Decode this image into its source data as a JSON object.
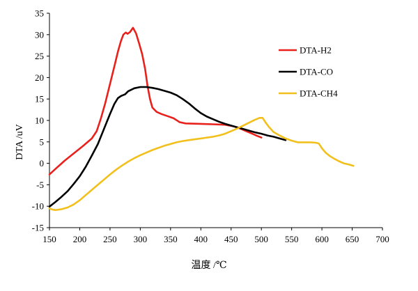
{
  "chart_data": {
    "type": "line",
    "title": "",
    "xlabel": "温度 /℃",
    "ylabel": "DTA /uV",
    "xlim": [
      150,
      700
    ],
    "ylim": [
      -15,
      35
    ],
    "x_ticks": [
      "150",
      "200",
      "250",
      "300",
      "350",
      "400",
      "450",
      "500",
      "550",
      "600",
      "650",
      "700"
    ],
    "y_ticks": [
      "-15",
      "-10",
      "-5",
      "0",
      "5",
      "10",
      "15",
      "20",
      "25",
      "30",
      "35"
    ],
    "grid": false,
    "legend_position": "right",
    "series": [
      {
        "name": "DTA-H2",
        "color": "#e8211c",
        "points": [
          [
            150,
            -2.6
          ],
          [
            160,
            -1.3
          ],
          [
            175,
            0.6
          ],
          [
            190,
            2.3
          ],
          [
            205,
            4
          ],
          [
            220,
            5.8
          ],
          [
            228,
            7.5
          ],
          [
            235,
            10.5
          ],
          [
            242,
            14
          ],
          [
            250,
            18.5
          ],
          [
            257,
            22.5
          ],
          [
            263,
            26
          ],
          [
            268,
            28.5
          ],
          [
            272,
            30
          ],
          [
            276,
            30.5
          ],
          [
            279,
            30.2
          ],
          [
            283,
            30.6
          ],
          [
            288,
            31.6
          ],
          [
            293,
            30.3
          ],
          [
            298,
            28
          ],
          [
            303,
            25.5
          ],
          [
            308,
            22
          ],
          [
            312,
            18
          ],
          [
            316,
            15
          ],
          [
            320,
            13
          ],
          [
            327,
            12
          ],
          [
            335,
            11.5
          ],
          [
            345,
            11
          ],
          [
            355,
            10.5
          ],
          [
            365,
            9.6
          ],
          [
            375,
            9.3
          ],
          [
            400,
            9.2
          ],
          [
            420,
            9.1
          ],
          [
            440,
            9
          ],
          [
            455,
            8.6
          ],
          [
            465,
            8.1
          ],
          [
            475,
            7.5
          ],
          [
            485,
            6.9
          ],
          [
            493,
            6.4
          ],
          [
            500,
            6
          ]
        ]
      },
      {
        "name": "DTA-CO",
        "color": "#000000",
        "points": [
          [
            150,
            -10.1
          ],
          [
            160,
            -9
          ],
          [
            170,
            -7.8
          ],
          [
            180,
            -6.5
          ],
          [
            190,
            -4.8
          ],
          [
            200,
            -3
          ],
          [
            210,
            -0.8
          ],
          [
            220,
            1.8
          ],
          [
            230,
            4.5
          ],
          [
            240,
            8
          ],
          [
            250,
            11.5
          ],
          [
            257,
            13.8
          ],
          [
            263,
            15.2
          ],
          [
            268,
            15.7
          ],
          [
            275,
            16.1
          ],
          [
            280,
            16.8
          ],
          [
            290,
            17.5
          ],
          [
            300,
            17.8
          ],
          [
            310,
            17.8
          ],
          [
            320,
            17.6
          ],
          [
            330,
            17.3
          ],
          [
            340,
            16.9
          ],
          [
            350,
            16.5
          ],
          [
            360,
            15.9
          ],
          [
            370,
            15
          ],
          [
            380,
            14
          ],
          [
            390,
            12.8
          ],
          [
            400,
            11.7
          ],
          [
            410,
            10.9
          ],
          [
            420,
            10.3
          ],
          [
            430,
            9.7
          ],
          [
            440,
            9.2
          ],
          [
            450,
            8.8
          ],
          [
            460,
            8.4
          ],
          [
            470,
            8
          ],
          [
            480,
            7.6
          ],
          [
            490,
            7.2
          ],
          [
            500,
            6.9
          ],
          [
            510,
            6.5
          ],
          [
            520,
            6.2
          ],
          [
            530,
            5.8
          ],
          [
            540,
            5.4
          ]
        ]
      },
      {
        "name": "DTA-CH4",
        "color": "#f2c01d",
        "points": [
          [
            150,
            -10.5
          ],
          [
            155,
            -10.8
          ],
          [
            160,
            -10.9
          ],
          [
            170,
            -10.7
          ],
          [
            180,
            -10.3
          ],
          [
            190,
            -9.6
          ],
          [
            200,
            -8.6
          ],
          [
            210,
            -7.4
          ],
          [
            220,
            -6.2
          ],
          [
            230,
            -5
          ],
          [
            240,
            -3.8
          ],
          [
            250,
            -2.6
          ],
          [
            260,
            -1.5
          ],
          [
            270,
            -0.5
          ],
          [
            280,
            0.4
          ],
          [
            290,
            1.2
          ],
          [
            300,
            1.9
          ],
          [
            310,
            2.5
          ],
          [
            320,
            3.1
          ],
          [
            330,
            3.6
          ],
          [
            340,
            4.1
          ],
          [
            350,
            4.5
          ],
          [
            360,
            4.9
          ],
          [
            370,
            5.2
          ],
          [
            380,
            5.4
          ],
          [
            390,
            5.6
          ],
          [
            400,
            5.8
          ],
          [
            410,
            6
          ],
          [
            420,
            6.2
          ],
          [
            430,
            6.5
          ],
          [
            440,
            6.9
          ],
          [
            450,
            7.5
          ],
          [
            460,
            8.1
          ],
          [
            470,
            8.8
          ],
          [
            480,
            9.5
          ],
          [
            490,
            10.2
          ],
          [
            497,
            10.6
          ],
          [
            502,
            10.6
          ],
          [
            507,
            9.5
          ],
          [
            513,
            8.4
          ],
          [
            520,
            7.3
          ],
          [
            530,
            6.5
          ],
          [
            540,
            5.8
          ],
          [
            550,
            5.3
          ],
          [
            560,
            4.9
          ],
          [
            570,
            4.9
          ],
          [
            580,
            4.9
          ],
          [
            590,
            4.8
          ],
          [
            595,
            4.6
          ],
          [
            600,
            3.5
          ],
          [
            606,
            2.5
          ],
          [
            613,
            1.7
          ],
          [
            620,
            1.1
          ],
          [
            628,
            0.5
          ],
          [
            636,
            0
          ],
          [
            645,
            -0.3
          ],
          [
            652,
            -0.6
          ]
        ]
      }
    ]
  }
}
